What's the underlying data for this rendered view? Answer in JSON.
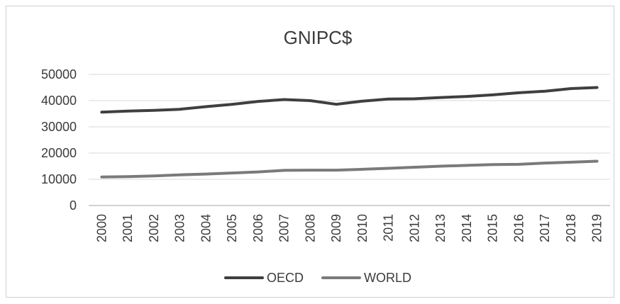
{
  "chart_data": {
    "type": "line",
    "title": "GNIPC$",
    "xlabel": "",
    "ylabel": "",
    "x": [
      "2000",
      "2001",
      "2002",
      "2003",
      "2004",
      "2005",
      "2006",
      "2007",
      "2008",
      "2009",
      "2010",
      "2011",
      "2012",
      "2013",
      "2014",
      "2015",
      "2016",
      "2017",
      "2018",
      "2019"
    ],
    "y_ticks": [
      "0",
      "10000",
      "20000",
      "30000",
      "40000",
      "50000"
    ],
    "ylim": [
      0,
      50000
    ],
    "grid": true,
    "legend_position": "bottom",
    "series": [
      {
        "name": "OECD",
        "color": "#3f3f3f",
        "values": [
          35600,
          36000,
          36300,
          36700,
          37700,
          38600,
          39700,
          40400,
          40000,
          38600,
          39800,
          40600,
          40700,
          41200,
          41600,
          42200,
          43000,
          43600,
          44600,
          45000
        ]
      },
      {
        "name": "WORLD",
        "color": "#7a7a7a",
        "values": [
          10900,
          11000,
          11300,
          11700,
          12000,
          12400,
          12800,
          13400,
          13500,
          13500,
          13800,
          14200,
          14600,
          15000,
          15300,
          15600,
          15700,
          16200,
          16500,
          16900
        ]
      }
    ]
  }
}
